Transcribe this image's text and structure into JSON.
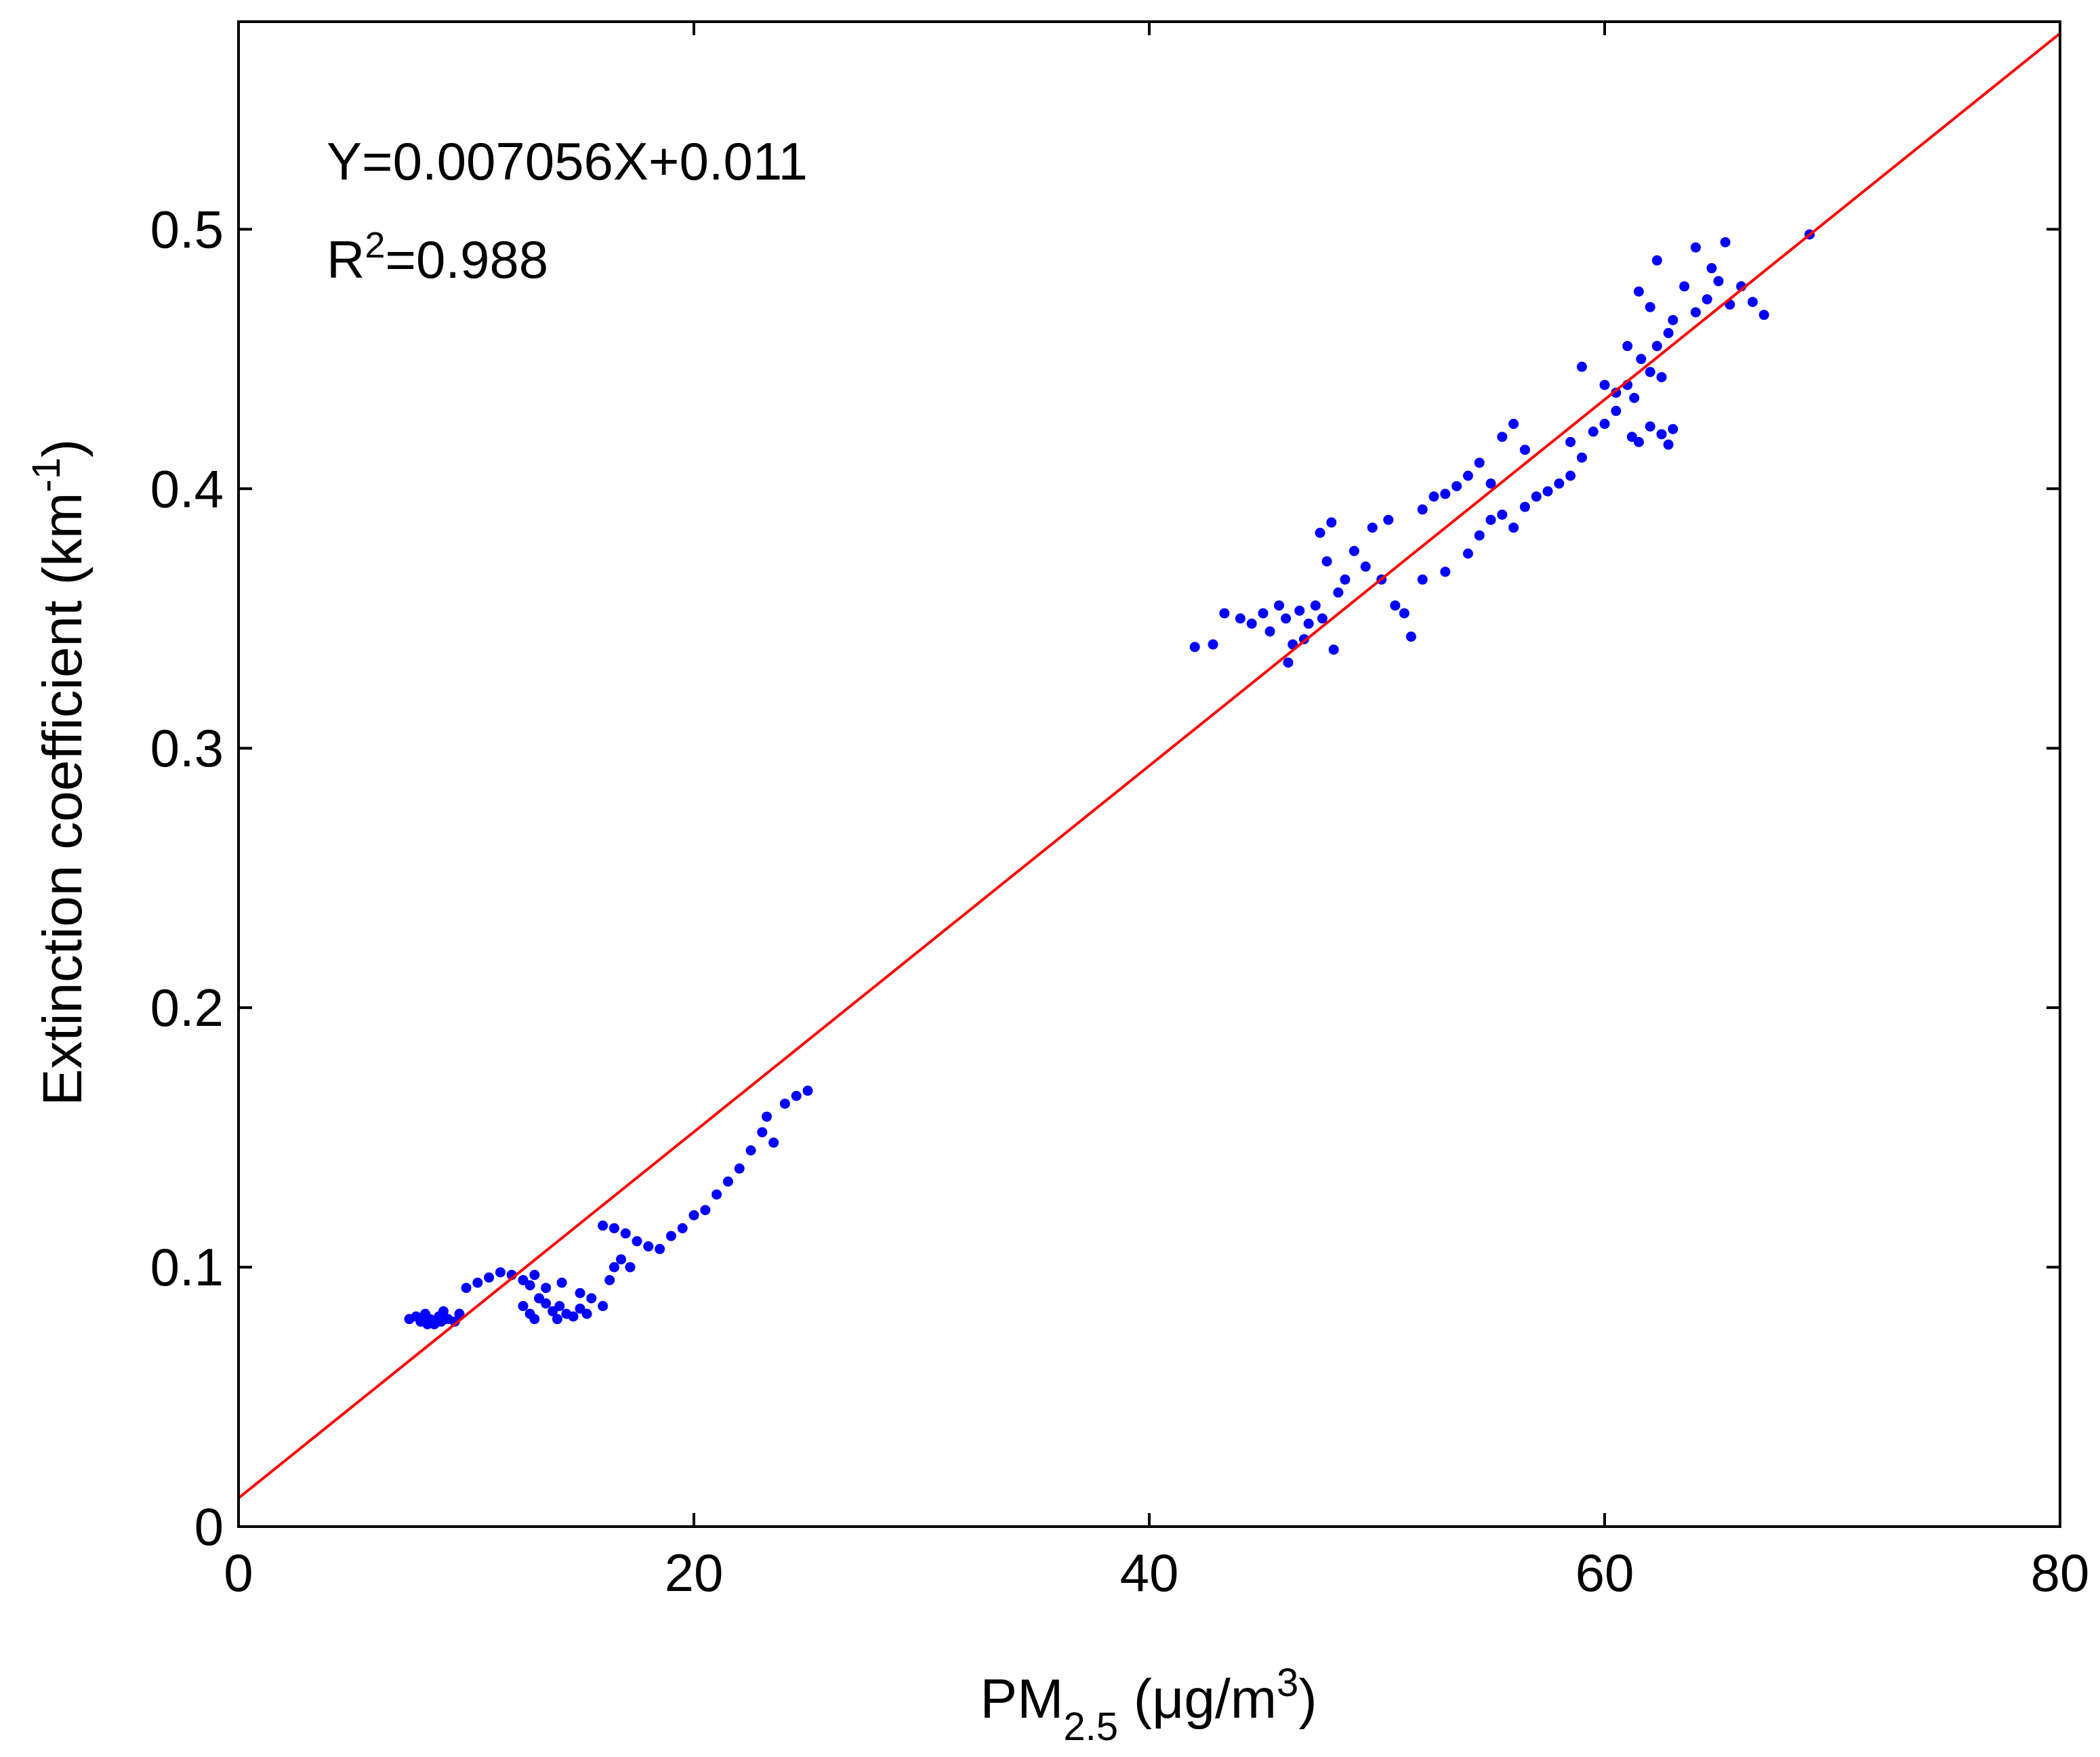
{
  "chart_data": {
    "type": "scatter",
    "title": "",
    "xlabel": {
      "base": "PM",
      "sub": "2.5",
      "unit_pre": " (μg/m",
      "unit_sup": "3",
      "unit_post": ")"
    },
    "ylabel": {
      "text": "Extinction coefficient (km",
      "sup": "-1",
      "post": ")"
    },
    "xlim": [
      0,
      80
    ],
    "ylim": [
      0,
      0.58
    ],
    "xticks": [
      0,
      20,
      40,
      60,
      80
    ],
    "xtick_labels": [
      "0",
      "20",
      "40",
      "60",
      "80"
    ],
    "yticks": [
      0,
      0.1,
      0.2,
      0.3,
      0.4,
      0.5
    ],
    "ytick_labels": [
      "0",
      "0.1",
      "0.2",
      "0.3",
      "0.4",
      "0.5"
    ],
    "grid": false,
    "annotations": {
      "equation": "Y=0.007056X+0.011",
      "r2_prefix": "R",
      "r2_sup": "2",
      "r2_value": "=0.988"
    },
    "fit_line": {
      "slope": 0.007056,
      "intercept": 0.011,
      "color": "#ff0000"
    },
    "points_color": "#0000ff",
    "points": [
      [
        7.5,
        0.08
      ],
      [
        7.8,
        0.081
      ],
      [
        8.0,
        0.079
      ],
      [
        8.2,
        0.082
      ],
      [
        8.4,
        0.08
      ],
      [
        8.6,
        0.078
      ],
      [
        8.8,
        0.081
      ],
      [
        9.0,
        0.083
      ],
      [
        9.2,
        0.08
      ],
      [
        9.5,
        0.079
      ],
      [
        9.7,
        0.082
      ],
      [
        8.3,
        0.078
      ],
      [
        8.9,
        0.079
      ],
      [
        10.0,
        0.092
      ],
      [
        10.5,
        0.094
      ],
      [
        11.0,
        0.096
      ],
      [
        11.5,
        0.098
      ],
      [
        12.0,
        0.097
      ],
      [
        12.5,
        0.095
      ],
      [
        13.0,
        0.097
      ],
      [
        12.8,
        0.093
      ],
      [
        12.5,
        0.085
      ],
      [
        12.8,
        0.082
      ],
      [
        13.2,
        0.088
      ],
      [
        13.5,
        0.086
      ],
      [
        13.8,
        0.083
      ],
      [
        14.1,
        0.085
      ],
      [
        14.4,
        0.082
      ],
      [
        14.7,
        0.081
      ],
      [
        15.0,
        0.084
      ],
      [
        15.3,
        0.082
      ],
      [
        13.0,
        0.08
      ],
      [
        14.0,
        0.08
      ],
      [
        13.5,
        0.092
      ],
      [
        14.2,
        0.094
      ],
      [
        15.0,
        0.09
      ],
      [
        15.5,
        0.088
      ],
      [
        16.0,
        0.085
      ],
      [
        16.3,
        0.095
      ],
      [
        16.5,
        0.1
      ],
      [
        16.8,
        0.103
      ],
      [
        16.0,
        0.116
      ],
      [
        16.5,
        0.115
      ],
      [
        17.0,
        0.113
      ],
      [
        17.5,
        0.11
      ],
      [
        18.0,
        0.108
      ],
      [
        18.5,
        0.107
      ],
      [
        17.2,
        0.1
      ],
      [
        19.0,
        0.112
      ],
      [
        19.5,
        0.115
      ],
      [
        20.0,
        0.12
      ],
      [
        20.5,
        0.122
      ],
      [
        21.0,
        0.128
      ],
      [
        21.5,
        0.133
      ],
      [
        22.0,
        0.138
      ],
      [
        22.5,
        0.145
      ],
      [
        23.0,
        0.152
      ],
      [
        23.2,
        0.158
      ],
      [
        23.5,
        0.148
      ],
      [
        24.0,
        0.163
      ],
      [
        24.5,
        0.166
      ],
      [
        25.0,
        0.168
      ],
      [
        42.0,
        0.339
      ],
      [
        42.8,
        0.34
      ],
      [
        43.3,
        0.352
      ],
      [
        44.0,
        0.35
      ],
      [
        44.5,
        0.348
      ],
      [
        45.0,
        0.352
      ],
      [
        45.3,
        0.345
      ],
      [
        45.7,
        0.355
      ],
      [
        46.0,
        0.35
      ],
      [
        46.3,
        0.34
      ],
      [
        46.6,
        0.353
      ],
      [
        47.0,
        0.348
      ],
      [
        47.3,
        0.355
      ],
      [
        47.6,
        0.35
      ],
      [
        46.1,
        0.333
      ],
      [
        46.8,
        0.342
      ],
      [
        47.5,
        0.383
      ],
      [
        48.0,
        0.387
      ],
      [
        47.8,
        0.372
      ],
      [
        48.3,
        0.36
      ],
      [
        48.6,
        0.365
      ],
      [
        48.1,
        0.338
      ],
      [
        49.0,
        0.376
      ],
      [
        49.5,
        0.37
      ],
      [
        49.8,
        0.385
      ],
      [
        50.2,
        0.365
      ],
      [
        50.5,
        0.388
      ],
      [
        50.8,
        0.355
      ],
      [
        51.2,
        0.352
      ],
      [
        51.5,
        0.343
      ],
      [
        52.0,
        0.392
      ],
      [
        52.5,
        0.397
      ],
      [
        53.0,
        0.398
      ],
      [
        53.5,
        0.401
      ],
      [
        54.0,
        0.405
      ],
      [
        54.5,
        0.41
      ],
      [
        55.0,
        0.402
      ],
      [
        52.0,
        0.365
      ],
      [
        53.0,
        0.368
      ],
      [
        54.0,
        0.375
      ],
      [
        54.5,
        0.382
      ],
      [
        55.0,
        0.388
      ],
      [
        55.5,
        0.39
      ],
      [
        56.0,
        0.385
      ],
      [
        56.5,
        0.393
      ],
      [
        57.0,
        0.397
      ],
      [
        57.5,
        0.399
      ],
      [
        58.0,
        0.402
      ],
      [
        58.5,
        0.405
      ],
      [
        55.5,
        0.42
      ],
      [
        56.0,
        0.425
      ],
      [
        56.5,
        0.415
      ],
      [
        58.5,
        0.418
      ],
      [
        59.0,
        0.412
      ],
      [
        59.5,
        0.422
      ],
      [
        60.0,
        0.425
      ],
      [
        60.5,
        0.43
      ],
      [
        61.0,
        0.44
      ],
      [
        61.3,
        0.435
      ],
      [
        61.6,
        0.45
      ],
      [
        62.0,
        0.445
      ],
      [
        62.3,
        0.455
      ],
      [
        62.5,
        0.443
      ],
      [
        59.0,
        0.447
      ],
      [
        60.0,
        0.44
      ],
      [
        60.5,
        0.437
      ],
      [
        61.0,
        0.455
      ],
      [
        61.5,
        0.476
      ],
      [
        62.0,
        0.47
      ],
      [
        62.3,
        0.488
      ],
      [
        62.8,
        0.46
      ],
      [
        63.0,
        0.465
      ],
      [
        63.5,
        0.478
      ],
      [
        64.0,
        0.468
      ],
      [
        64.5,
        0.473
      ],
      [
        64.7,
        0.485
      ],
      [
        65.0,
        0.48
      ],
      [
        65.5,
        0.471
      ],
      [
        66.0,
        0.478
      ],
      [
        66.5,
        0.472
      ],
      [
        67.0,
        0.467
      ],
      [
        61.2,
        0.42
      ],
      [
        61.5,
        0.418
      ],
      [
        62.0,
        0.424
      ],
      [
        62.5,
        0.421
      ],
      [
        62.8,
        0.417
      ],
      [
        63.0,
        0.423
      ],
      [
        64.0,
        0.493
      ],
      [
        65.3,
        0.495
      ],
      [
        69.0,
        0.498
      ]
    ]
  }
}
